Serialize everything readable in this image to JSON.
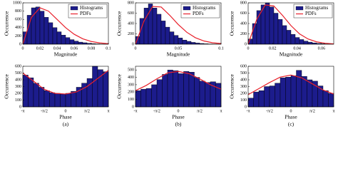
{
  "chart_data": [
    {
      "type": "histogram",
      "x_label": "Magnitude",
      "y_label": "Occurrence",
      "legend": "upper right",
      "xlim": [
        0,
        0.1
      ],
      "xticks": [
        0,
        0.02,
        0.04,
        0.06,
        0.08,
        0.1
      ],
      "ylim": [
        0,
        1000
      ],
      "yticks": [
        0,
        200,
        400,
        600,
        800,
        1000
      ],
      "bins": [
        0,
        0.005,
        0.01,
        0.015,
        0.02,
        0.025,
        0.03,
        0.035,
        0.04,
        0.045,
        0.05,
        0.055,
        0.06,
        0.065,
        0.07,
        0.075,
        0.08,
        0.085,
        0.09,
        0.095,
        0.1
      ],
      "series": [
        {
          "name": "Histograms",
          "color": "#1c1c8c",
          "values": [
            300,
            700,
            880,
            900,
            800,
            650,
            520,
            400,
            300,
            220,
            160,
            110,
            75,
            50,
            35,
            22,
            14,
            8,
            5,
            3
          ]
        },
        {
          "name": "PDFs",
          "color": "#e8202a",
          "x": [
            0,
            0.01,
            0.02,
            0.03,
            0.04,
            0.05,
            0.06,
            0.07,
            0.08,
            0.09,
            0.1
          ],
          "values": [
            0,
            650,
            880,
            800,
            600,
            400,
            240,
            130,
            65,
            30,
            12
          ]
        }
      ]
    },
    {
      "type": "histogram",
      "x_label": "Magnitude",
      "y_label": "Occurrence",
      "legend": "upper right",
      "xlim": [
        0,
        0.1
      ],
      "xticks": [
        0,
        0.05,
        0.1
      ],
      "ylim": [
        0,
        800
      ],
      "yticks": [
        0,
        200,
        400,
        600,
        800
      ],
      "bins": [
        0,
        0.005,
        0.01,
        0.015,
        0.02,
        0.025,
        0.03,
        0.035,
        0.04,
        0.045,
        0.05,
        0.055,
        0.06,
        0.065,
        0.07,
        0.075,
        0.08,
        0.085,
        0.09,
        0.095,
        0.1
      ],
      "series": [
        {
          "name": "Histograms",
          "color": "#1c1c8c",
          "values": [
            150,
            500,
            700,
            780,
            700,
            580,
            450,
            330,
            240,
            170,
            120,
            80,
            55,
            35,
            22,
            14,
            8,
            5,
            3,
            2
          ]
        },
        {
          "name": "PDFs",
          "color": "#e8202a",
          "x": [
            0,
            0.01,
            0.02,
            0.03,
            0.04,
            0.05,
            0.06,
            0.07,
            0.08,
            0.09,
            0.1
          ],
          "values": [
            0,
            450,
            730,
            720,
            560,
            380,
            230,
            125,
            62,
            28,
            12
          ]
        }
      ]
    },
    {
      "type": "histogram",
      "x_label": "Magnitude",
      "y_label": "Occurrence",
      "legend": "upper right",
      "xlim": [
        0,
        0.07
      ],
      "xticks": [
        0,
        0.02,
        0.04,
        0.06
      ],
      "ylim": [
        0,
        800
      ],
      "yticks": [
        0,
        200,
        400,
        600,
        800
      ],
      "bins": [
        0,
        0.0035,
        0.007,
        0.0105,
        0.014,
        0.0175,
        0.021,
        0.0245,
        0.028,
        0.0315,
        0.035,
        0.0385,
        0.042,
        0.0455,
        0.049,
        0.0525,
        0.056,
        0.0595,
        0.063,
        0.0665,
        0.07
      ],
      "series": [
        {
          "name": "Histograms",
          "color": "#1c1c8c",
          "values": [
            100,
            400,
            650,
            760,
            800,
            720,
            600,
            480,
            360,
            270,
            190,
            130,
            90,
            60,
            40,
            25,
            15,
            9,
            5,
            3
          ]
        },
        {
          "name": "PDFs",
          "color": "#e8202a",
          "x": [
            0,
            0.007,
            0.014,
            0.021,
            0.028,
            0.035,
            0.042,
            0.049,
            0.056,
            0.063,
            0.07
          ],
          "values": [
            0,
            480,
            760,
            740,
            560,
            360,
            200,
            100,
            45,
            18,
            6
          ]
        }
      ]
    },
    {
      "type": "histogram",
      "x_label": "Phase",
      "y_label": "Occurrence",
      "caption": "(a)",
      "xlim": [
        -3.1416,
        3.1416
      ],
      "xticks": [
        {
          "value": -3.1416,
          "label": "-π"
        },
        {
          "value": -1.5708,
          "label": "-π/2"
        },
        0,
        {
          "value": 1.5708,
          "label": "π/2"
        },
        {
          "value": 3.1416,
          "label": "π"
        }
      ],
      "ylim": [
        0,
        600
      ],
      "yticks": [
        0,
        100,
        200,
        300,
        400,
        500,
        600
      ],
      "bins": [
        -3.1416,
        -2.7489,
        -2.3562,
        -1.9635,
        -1.5708,
        -1.1781,
        -0.7854,
        -0.3927,
        0,
        0.3927,
        0.7854,
        1.1781,
        1.5708,
        1.9635,
        2.3562,
        2.7489,
        3.1416
      ],
      "series": [
        {
          "name": "Histograms",
          "color": "#1c1c8c",
          "values": [
            470,
            430,
            350,
            290,
            240,
            210,
            200,
            190,
            200,
            230,
            290,
            350,
            420,
            600,
            550,
            520
          ]
        },
        {
          "name": "PDFs",
          "color": "#e8202a",
          "x": [
            -3.1416,
            -2.3562,
            -1.5708,
            -0.7854,
            0,
            0.7854,
            1.5708,
            2.3562,
            3.1416
          ],
          "values": [
            500,
            380,
            260,
            200,
            190,
            220,
            300,
            420,
            540
          ]
        }
      ]
    },
    {
      "type": "histogram",
      "x_label": "Phase",
      "y_label": "Occurrence",
      "caption": "(b)",
      "xlim": [
        -3.1416,
        3.1416
      ],
      "xticks": [
        {
          "value": -3.1416,
          "label": "-π"
        },
        {
          "value": -1.5708,
          "label": "-π/2"
        },
        0,
        {
          "value": 1.5708,
          "label": "π/2"
        },
        {
          "value": 3.1416,
          "label": "π"
        }
      ],
      "ylim": [
        0,
        550
      ],
      "yticks": [
        0,
        100,
        200,
        300,
        400,
        500
      ],
      "bins": [
        -3.1416,
        -2.7489,
        -2.3562,
        -1.9635,
        -1.5708,
        -1.1781,
        -0.7854,
        -0.3927,
        0,
        0.3927,
        0.7854,
        1.1781,
        1.5708,
        1.9635,
        2.3562,
        2.7489,
        3.1416
      ],
      "series": [
        {
          "name": "Histograms",
          "color": "#1c1c8c",
          "values": [
            220,
            240,
            250,
            300,
            370,
            440,
            500,
            490,
            450,
            480,
            470,
            400,
            350,
            330,
            340,
            320
          ]
        },
        {
          "name": "PDFs",
          "color": "#e8202a",
          "x": [
            -3.1416,
            -2.3562,
            -1.5708,
            -0.7854,
            0,
            0.7854,
            1.5708,
            2.3562,
            3.1416
          ],
          "values": [
            220,
            290,
            380,
            460,
            480,
            450,
            380,
            300,
            240
          ]
        }
      ]
    },
    {
      "type": "histogram",
      "x_label": "Phase",
      "y_label": "Occurrence",
      "caption": "(c)",
      "xlim": [
        -3.1416,
        3.1416
      ],
      "xticks": [
        {
          "value": -3.1416,
          "label": "-π"
        },
        {
          "value": -1.5708,
          "label": "-π/2"
        },
        0,
        {
          "value": 1.5708,
          "label": "π/2"
        },
        {
          "value": 3.1416,
          "label": "π"
        }
      ],
      "ylim": [
        0,
        600
      ],
      "yticks": [
        0,
        100,
        200,
        300,
        400,
        500,
        600
      ],
      "bins": [
        -3.1416,
        -2.7489,
        -2.3562,
        -1.9635,
        -1.5708,
        -1.1781,
        -0.7854,
        -0.3927,
        0,
        0.3927,
        0.7854,
        1.1781,
        1.5708,
        1.9635,
        2.3562,
        2.7489,
        3.1416
      ],
      "series": [
        {
          "name": "Histograms",
          "color": "#1c1c8c",
          "values": [
            130,
            220,
            240,
            300,
            310,
            350,
            430,
            440,
            460,
            540,
            450,
            400,
            380,
            310,
            240,
            200
          ]
        },
        {
          "name": "PDFs",
          "color": "#e8202a",
          "x": [
            -3.1416,
            -2.3562,
            -1.5708,
            -0.7854,
            0,
            0.7854,
            1.5708,
            2.3562,
            3.1416
          ],
          "values": [
            180,
            270,
            360,
            440,
            470,
            430,
            340,
            250,
            190
          ]
        }
      ]
    }
  ]
}
